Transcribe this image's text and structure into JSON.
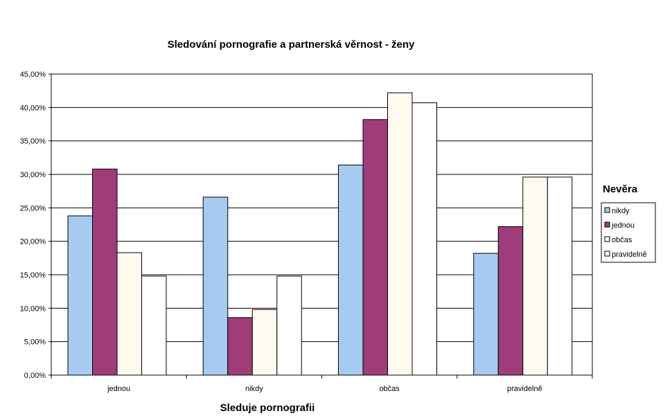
{
  "chart_data": {
    "type": "bar",
    "title": "Sledování pornografie a partnerská věrnost  - ženy",
    "xlabel": "Sleduje pornografii",
    "ylabel": "",
    "ylim": [
      0,
      45
    ],
    "y_ticks": [
      "0,00%",
      "5,00%",
      "10,00%",
      "15,00%",
      "20,00%",
      "25,00%",
      "30,00%",
      "35,00%",
      "40,00%",
      "45,00%"
    ],
    "categories": [
      "jednou",
      "nikdy",
      "občas",
      "pravidelně"
    ],
    "grid": true,
    "legend": {
      "title": "Nevěra",
      "position": "right"
    },
    "series": [
      {
        "name": "nikdy",
        "color": "#a6caf0",
        "values": [
          23.8,
          26.6,
          31.4,
          18.2
        ]
      },
      {
        "name": "jednou",
        "color": "#9e3d7a",
        "values": [
          30.8,
          8.6,
          38.2,
          22.2
        ]
      },
      {
        "name": "občas",
        "color": "#fffbf0",
        "values": [
          18.3,
          9.8,
          42.2,
          29.6
        ]
      },
      {
        "name": "pravidelně",
        "color": "#ffffff",
        "values": [
          14.8,
          14.8,
          40.7,
          29.6
        ]
      }
    ]
  }
}
